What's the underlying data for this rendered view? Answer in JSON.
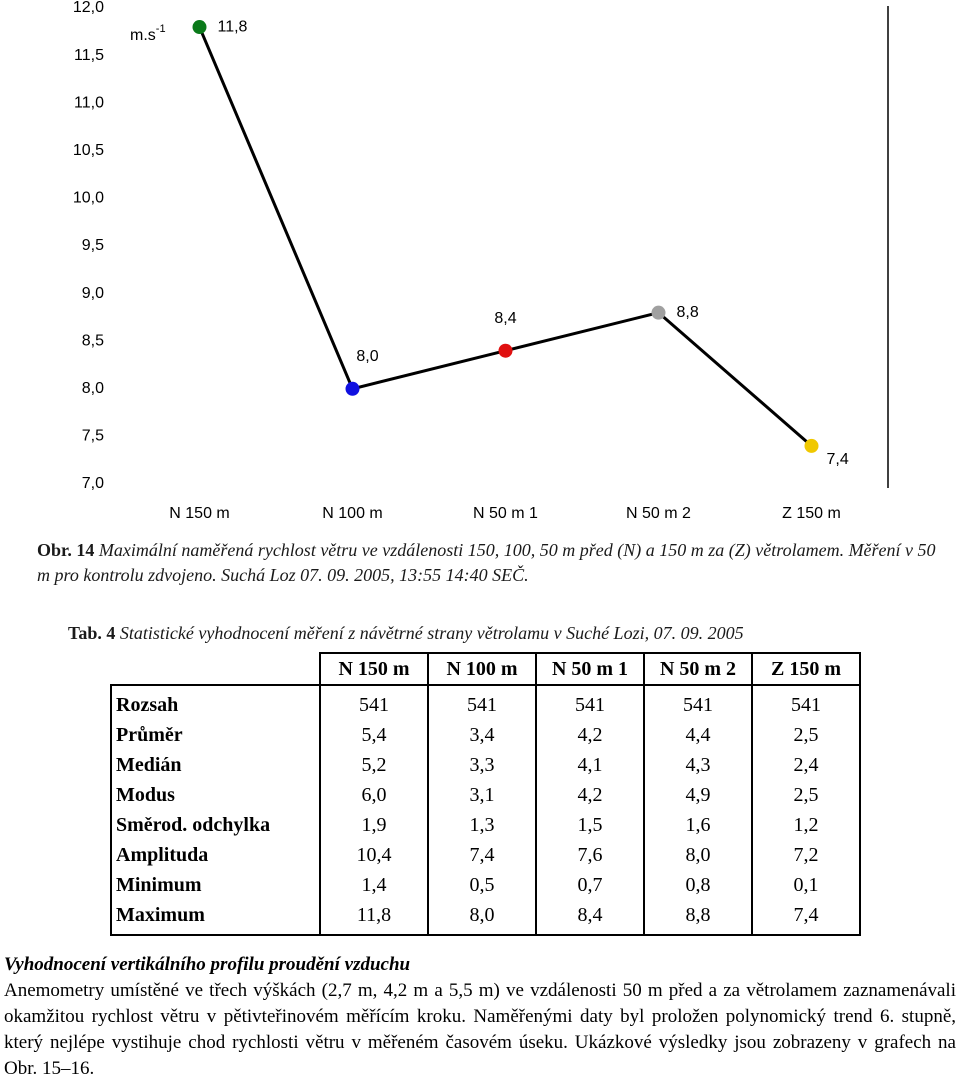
{
  "chart_data": {
    "type": "line",
    "unit": "m.s",
    "unit_sup": "-1",
    "categories": [
      "N 150 m",
      "N 100 m",
      "N 50 m 1",
      "N 50 m 2",
      "Z 150 m"
    ],
    "values": [
      11.8,
      8.0,
      8.4,
      8.8,
      7.4
    ],
    "value_labels": [
      "11,8",
      "8,0",
      "8,4",
      "8,8",
      "7,4"
    ],
    "point_colors": [
      "#0a7a1a",
      "#1010e0",
      "#e01010",
      "#a0a0a0",
      "#f0c800"
    ],
    "color": "#000000",
    "ylim": [
      7,
      12
    ],
    "yticks": [
      {
        "value": 7,
        "label": "7,0"
      },
      {
        "value": 7.5,
        "label": "7,5"
      },
      {
        "value": 8,
        "label": "8,0"
      },
      {
        "value": 8.5,
        "label": "8,5"
      },
      {
        "value": 9,
        "label": "9,0"
      },
      {
        "value": 9.5,
        "label": "9,5"
      },
      {
        "value": 10,
        "label": "10,0"
      },
      {
        "value": 10.5,
        "label": "10,5"
      },
      {
        "value": 11,
        "label": "11,0"
      },
      {
        "value": 11.5,
        "label": "11,5"
      },
      {
        "value": 12,
        "label": "12,0"
      }
    ]
  },
  "caption": {
    "label": "Obr. 14",
    "text": "Maximální naměřená rychlost větru ve vzdálenosti 150, 100, 50 m před (N) a 150 m za (Z) větrolamem. Měření v 50 m pro kontrolu zdvojeno. Suchá Loz 07. 09. 2005, 13:55 14:40 SEČ."
  },
  "table_caption": {
    "label": "Tab. 4",
    "text": "Statistické vyhodnocení měření z návětrné strany větrolamu v Suché Lozi, 07. 09. 2005"
  },
  "table": {
    "columns": [
      "N 150 m",
      "N 100 m",
      "N 50 m 1",
      "N 50 m 2",
      "Z 150 m"
    ],
    "rows": [
      [
        "Rozsah",
        "541",
        "541",
        "541",
        "541",
        "541"
      ],
      [
        "Průměr",
        "5,4",
        "3,4",
        "4,2",
        "4,4",
        "2,5"
      ],
      [
        "Medián",
        "5,2",
        "3,3",
        "4,1",
        "4,3",
        "2,4"
      ],
      [
        "Modus",
        "6,0",
        "3,1",
        "4,2",
        "4,9",
        "2,5"
      ],
      [
        "Směrod. odchylka",
        "1,9",
        "1,3",
        "1,5",
        "1,6",
        "1,2"
      ],
      [
        "Amplituda",
        "10,4",
        "7,4",
        "7,6",
        "8,0",
        "7,2"
      ],
      [
        "Minimum",
        "1,4",
        "0,5",
        "0,7",
        "0,8",
        "0,1"
      ],
      [
        "Maximum",
        "11,8",
        "8,0",
        "8,4",
        "8,8",
        "7,4"
      ]
    ]
  },
  "section": {
    "heading": "Vyhodnocení vertikálního profilu proudění vzduchu",
    "text": "Anemometry umístěné ve třech výškách (2,7 m, 4,2 m a 5,5 m) ve vzdálenosti 50 m před a za větrolamem zaznamenávali okamžitou rychlost větru v pětivteřinovém měřícím kroku. Naměřenými daty byl proložen polynomický trend 6. stupně, který nejlépe vystihuje chod rychlosti větru v měřeném časovém úseku. Ukázkové výsledky jsou zobrazeny v grafech na Obr. 15–16."
  }
}
